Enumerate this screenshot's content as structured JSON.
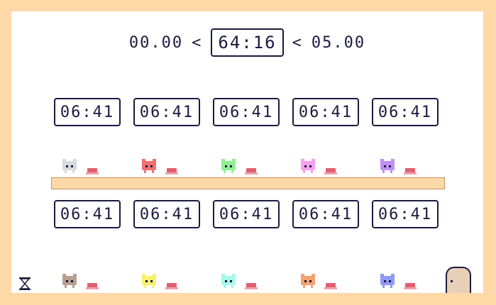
{
  "timer": {
    "left": "00.00",
    "sep_left": "<",
    "main": "64:16",
    "sep_right": "<",
    "right": "05.00"
  },
  "clocks_top": [
    "06:41",
    "06:41",
    "06:41",
    "06:41",
    "06:41"
  ],
  "clocks_bottom": [
    "06:41",
    "06:41",
    "06:41",
    "06:41",
    "06:41"
  ],
  "cats_top": [
    {
      "name": "cat-white-icon",
      "color": "#d8d8e0"
    },
    {
      "name": "cat-red-icon",
      "color": "#f07070"
    },
    {
      "name": "cat-green-icon",
      "color": "#90f090"
    },
    {
      "name": "cat-pink-icon",
      "color": "#f8a0f0"
    },
    {
      "name": "cat-purple-icon",
      "color": "#c090f8"
    }
  ],
  "cats_bottom": [
    {
      "name": "cat-brown-icon",
      "color": "#b8a090"
    },
    {
      "name": "cat-yellow-icon",
      "color": "#f8f070"
    },
    {
      "name": "cat-cyan-icon",
      "color": "#a8f8e8"
    },
    {
      "name": "cat-orange-icon",
      "color": "#f8a070"
    },
    {
      "name": "cat-blue-icon",
      "color": "#9098f8"
    }
  ],
  "colors": {
    "background": "#ffd8a8",
    "ink": "#1a1a40",
    "button": "#e06070",
    "door": "#e8d0b8"
  }
}
